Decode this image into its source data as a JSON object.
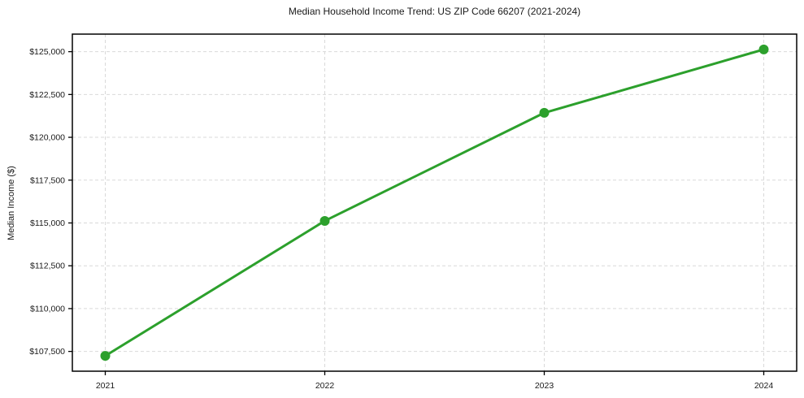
{
  "chart_data": {
    "type": "line",
    "title": "Median Household Income Trend: US ZIP Code 66207 (2021-2024)",
    "xlabel": "",
    "ylabel": "Median Income ($)",
    "x": [
      2021,
      2022,
      2023,
      2024
    ],
    "values": [
      107240,
      115120,
      121430,
      125130
    ],
    "xticks": {
      "values": [
        2021,
        2022,
        2023,
        2024
      ],
      "labels": [
        "2021",
        "2022",
        "2023",
        "2024"
      ]
    },
    "yticks": {
      "values": [
        107500,
        110000,
        112500,
        115000,
        117500,
        120000,
        122500,
        125000
      ],
      "labels": [
        "$107,500",
        "$110,000",
        "$112,500",
        "$115,000",
        "$117,500",
        "$120,000",
        "$122,500",
        "$125,000"
      ]
    },
    "xlim": [
      2020.85,
      2024.15
    ],
    "ylim": [
      106345,
      126025
    ],
    "grid": true,
    "legend": false,
    "marker": "circle",
    "colors": {
      "line": "#2ca02c",
      "marker": "#2ca02c",
      "grid": "#d9d9d9",
      "spine": "#000000",
      "text": "#1a1a1a",
      "background": "#ffffff"
    }
  }
}
